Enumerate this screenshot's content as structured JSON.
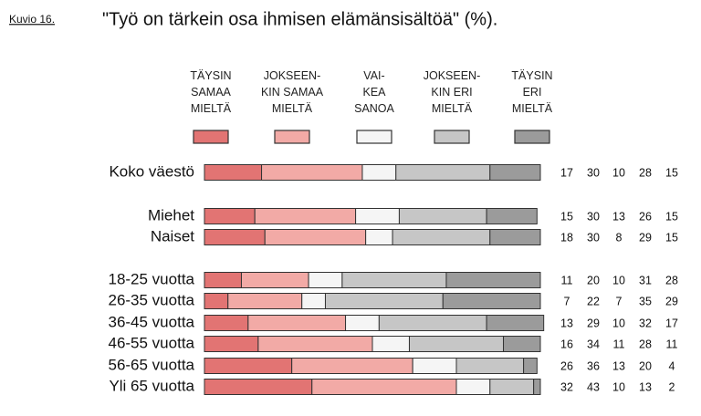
{
  "chart_data": {
    "type": "stacked-bar-horizontal",
    "figure_label": "Kuvio 16.",
    "title": "\"Työ on tärkein osa ihmisen elämänsisältöä\" (%).",
    "categories": [
      "Koko väestö",
      "Miehet",
      "Naiset",
      "18-25 vuotta",
      "26-35 vuotta",
      "36-45 vuotta",
      "46-55 vuotta",
      "56-65 vuotta",
      "Yli 65 vuotta"
    ],
    "xlim": [
      0,
      100
    ],
    "series": [
      {
        "name": "TÄYSIN\nSAMAA\nMIELTÄ",
        "color": "#e27473",
        "values": [
          17,
          15,
          18,
          11,
          7,
          13,
          16,
          26,
          32
        ]
      },
      {
        "name": "JOKSEEN-\nKIN SAMAA\nMIELTÄ",
        "color": "#f2aaa6",
        "values": [
          30,
          30,
          30,
          20,
          22,
          29,
          34,
          36,
          43
        ]
      },
      {
        "name": "VAI-\nKEA\nSANOA",
        "color": "#f5f5f5",
        "values": [
          10,
          13,
          8,
          10,
          7,
          10,
          11,
          13,
          10
        ]
      },
      {
        "name": "JOKSEEN-\nKIN ERI\nMIELTÄ",
        "color": "#c6c6c6",
        "values": [
          28,
          26,
          29,
          31,
          35,
          32,
          28,
          20,
          13
        ]
      },
      {
        "name": "TÄYSIN\nERI\nMIELTÄ",
        "color": "#9b9b9b",
        "values": [
          15,
          15,
          15,
          28,
          29,
          17,
          11,
          4,
          2
        ]
      }
    ]
  }
}
